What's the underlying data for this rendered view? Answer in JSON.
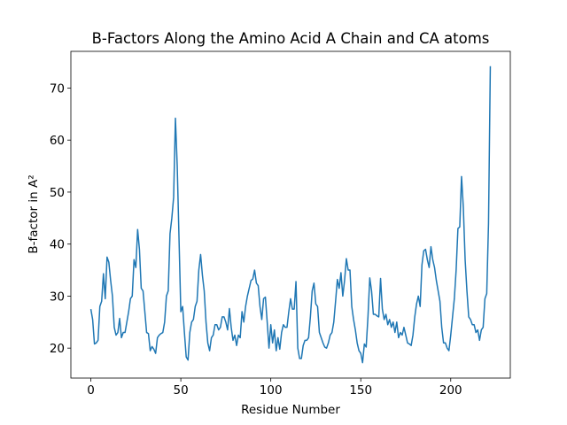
{
  "chart_data": {
    "type": "line",
    "title": "B-Factors Along the Amino Acid A Chain and CA atoms",
    "x_label": "Residue Number",
    "y_label": "B-factor in A²",
    "x": [
      0,
      1,
      2,
      3,
      4,
      5,
      6,
      7,
      8,
      9,
      10,
      11,
      12,
      13,
      14,
      15,
      16,
      17,
      18,
      19,
      20,
      21,
      22,
      23,
      24,
      25,
      26,
      27,
      28,
      29,
      30,
      31,
      32,
      33,
      34,
      35,
      36,
      37,
      38,
      39,
      40,
      41,
      42,
      43,
      44,
      45,
      46,
      47,
      48,
      49,
      50,
      51,
      52,
      53,
      54,
      55,
      56,
      57,
      58,
      59,
      60,
      61,
      62,
      63,
      64,
      65,
      66,
      67,
      68,
      69,
      70,
      71,
      72,
      73,
      74,
      75,
      76,
      77,
      78,
      79,
      80,
      81,
      82,
      83,
      84,
      85,
      86,
      87,
      88,
      89,
      90,
      91,
      92,
      93,
      94,
      95,
      96,
      97,
      98,
      99,
      100,
      101,
      102,
      103,
      104,
      105,
      106,
      107,
      108,
      109,
      110,
      111,
      112,
      113,
      114,
      115,
      116,
      117,
      118,
      119,
      120,
      121,
      122,
      123,
      124,
      125,
      126,
      127,
      128,
      129,
      130,
      131,
      132,
      133,
      134,
      135,
      136,
      137,
      138,
      139,
      140,
      141,
      142,
      143,
      144,
      145,
      146,
      147,
      148,
      149,
      150,
      151,
      152,
      153,
      154,
      155,
      156,
      157,
      158,
      159,
      160,
      161,
      162,
      163,
      164,
      165,
      166,
      167,
      168,
      169,
      170,
      171,
      172,
      173,
      174,
      175,
      176,
      177,
      178,
      179,
      180,
      181,
      182,
      183,
      184,
      185,
      186,
      187,
      188,
      189,
      190,
      191,
      192,
      193,
      194,
      195,
      196,
      197,
      198,
      199,
      200,
      201,
      202,
      203,
      204,
      205,
      206,
      207,
      208,
      209,
      210,
      211,
      212,
      213,
      214,
      215,
      216,
      217,
      218,
      219,
      220,
      221,
      222
    ],
    "series": [
      {
        "color": "#1f77b4",
        "values": [
          27.5,
          25.5,
          20.8,
          21,
          21.5,
          28,
          29,
          34.3,
          29.5,
          37.5,
          36.5,
          33,
          30,
          24,
          22.5,
          23,
          25.7,
          22,
          23,
          23,
          25,
          27,
          29.5,
          30,
          37,
          35.5,
          42.8,
          39,
          31.5,
          31,
          27,
          23,
          22.8,
          19.5,
          20.3,
          19.8,
          19,
          22,
          22.5,
          22.8,
          23,
          25,
          30,
          31,
          42,
          45,
          49,
          64.2,
          55,
          41,
          27,
          28,
          23,
          18.3,
          17.7,
          23,
          25,
          25.5,
          28,
          29,
          35,
          38,
          34,
          31,
          25,
          21,
          19.5,
          22,
          22.5,
          24.5,
          24.5,
          23.5,
          24,
          26,
          26,
          25,
          23.5,
          27.6,
          24,
          21.5,
          22.5,
          20.5,
          22.5,
          22,
          27,
          25,
          28,
          30,
          31.5,
          33,
          33.3,
          35,
          32.5,
          32,
          28,
          25.5,
          29.5,
          29.8,
          25,
          20,
          24.5,
          21,
          23.5,
          19.5,
          22,
          19.8,
          23,
          24.5,
          24,
          24,
          27,
          29.5,
          27.5,
          27.5,
          32.8,
          20,
          18,
          18,
          20.5,
          21.5,
          21.5,
          22,
          26,
          31,
          32.5,
          28.5,
          28,
          23,
          22,
          21,
          20.2,
          20,
          21,
          22.5,
          23,
          25,
          29,
          33.2,
          31.5,
          34.5,
          30,
          33,
          37.2,
          35,
          35,
          28,
          25.5,
          23.5,
          21,
          19.5,
          19,
          17.2,
          20.8,
          20.2,
          26,
          33.5,
          31,
          26.5,
          26.5,
          26.2,
          26,
          33.4,
          27.5,
          25.5,
          26.5,
          24.5,
          25.5,
          24,
          25,
          23,
          25,
          22,
          23,
          22.5,
          24,
          22.5,
          21,
          20.8,
          20.5,
          22.5,
          26,
          28.5,
          30,
          28,
          36,
          38.7,
          39,
          37,
          35.5,
          39.5,
          37,
          35.5,
          33,
          31,
          29,
          24,
          21,
          21,
          20,
          19.5,
          22.5,
          26,
          29.5,
          35,
          43,
          43.3,
          53,
          47,
          37,
          31,
          26,
          25.5,
          24.5,
          24.5,
          23,
          23.5,
          21.5,
          23.5,
          24,
          29.5,
          30.5,
          44,
          74.2
        ]
      }
    ],
    "xlim": [
      -11.1,
      233.1
    ],
    "ylim": [
      14.24,
      77.06
    ],
    "xticks": [
      0,
      50,
      100,
      150,
      200
    ],
    "yticks": [
      20,
      30,
      40,
      50,
      60,
      70
    ]
  }
}
